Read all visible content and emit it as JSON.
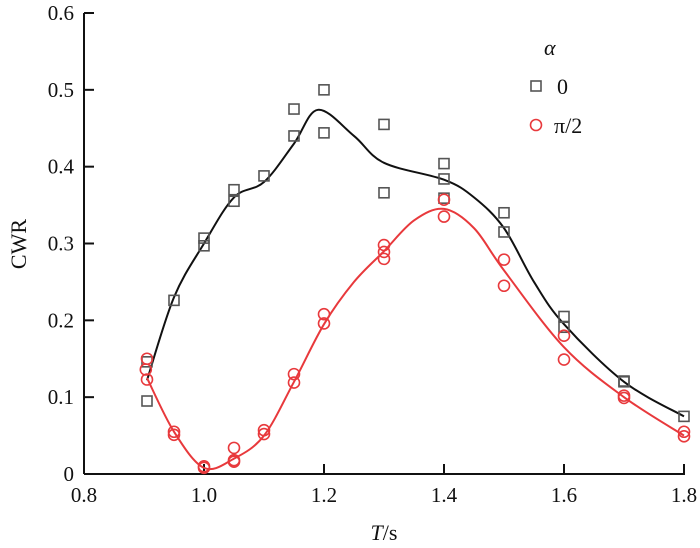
{
  "chart_data": {
    "type": "scatter",
    "xlabel_italic": "T",
    "xlabel_unit": "/s",
    "ylabel": "CWR",
    "xlim": [
      0.8,
      1.8
    ],
    "ylim": [
      0,
      0.6
    ],
    "xticks": [
      "0.8",
      "1.0",
      "1.2",
      "1.4",
      "1.6",
      "1.8"
    ],
    "yticks": [
      "0",
      "0.1",
      "0.2",
      "0.3",
      "0.4",
      "0.5",
      "0.6"
    ],
    "grid": false,
    "legend": {
      "title": "α",
      "position": "top-right"
    },
    "series": [
      {
        "name": "0",
        "color": "#111111",
        "marker": "square",
        "points": [
          [
            0.905,
            0.095
          ],
          [
            0.905,
            0.146
          ],
          [
            0.95,
            0.226
          ],
          [
            1.0,
            0.307
          ],
          [
            1.0,
            0.297
          ],
          [
            1.05,
            0.37
          ],
          [
            1.05,
            0.355
          ],
          [
            1.1,
            0.388
          ],
          [
            1.15,
            0.475
          ],
          [
            1.15,
            0.44
          ],
          [
            1.2,
            0.5
          ],
          [
            1.2,
            0.444
          ],
          [
            1.3,
            0.455
          ],
          [
            1.3,
            0.366
          ],
          [
            1.4,
            0.404
          ],
          [
            1.4,
            0.384
          ],
          [
            1.4,
            0.359
          ],
          [
            1.5,
            0.34
          ],
          [
            1.5,
            0.315
          ],
          [
            1.6,
            0.205
          ],
          [
            1.6,
            0.191
          ],
          [
            1.7,
            0.121
          ],
          [
            1.7,
            0.12
          ],
          [
            1.8,
            0.075
          ]
        ],
        "curve": [
          [
            0.905,
            0.122
          ],
          [
            0.95,
            0.23
          ],
          [
            1.0,
            0.3
          ],
          [
            1.05,
            0.36
          ],
          [
            1.1,
            0.38
          ],
          [
            1.15,
            0.43
          ],
          [
            1.19,
            0.474
          ],
          [
            1.25,
            0.44
          ],
          [
            1.3,
            0.405
          ],
          [
            1.4,
            0.383
          ],
          [
            1.45,
            0.36
          ],
          [
            1.5,
            0.32
          ],
          [
            1.55,
            0.25
          ],
          [
            1.6,
            0.195
          ],
          [
            1.7,
            0.12
          ],
          [
            1.8,
            0.075
          ]
        ]
      },
      {
        "name": "π/2",
        "color": "#e8393c",
        "marker": "circle",
        "points": [
          [
            0.905,
            0.15
          ],
          [
            0.903,
            0.136
          ],
          [
            0.905,
            0.123
          ],
          [
            0.95,
            0.055
          ],
          [
            0.95,
            0.051
          ],
          [
            1.0,
            0.01
          ],
          [
            1.0,
            0.008
          ],
          [
            1.05,
            0.034
          ],
          [
            1.05,
            0.018
          ],
          [
            1.05,
            0.016
          ],
          [
            1.1,
            0.057
          ],
          [
            1.1,
            0.052
          ],
          [
            1.15,
            0.13
          ],
          [
            1.15,
            0.119
          ],
          [
            1.2,
            0.208
          ],
          [
            1.2,
            0.196
          ],
          [
            1.3,
            0.298
          ],
          [
            1.3,
            0.289
          ],
          [
            1.3,
            0.28
          ],
          [
            1.4,
            0.357
          ],
          [
            1.4,
            0.335
          ],
          [
            1.5,
            0.279
          ],
          [
            1.5,
            0.245
          ],
          [
            1.6,
            0.18
          ],
          [
            1.6,
            0.149
          ],
          [
            1.7,
            0.102
          ],
          [
            1.7,
            0.099
          ],
          [
            1.8,
            0.055
          ],
          [
            1.8,
            0.049
          ]
        ],
        "curve": [
          [
            0.905,
            0.125
          ],
          [
            0.95,
            0.055
          ],
          [
            1.0,
            0.008
          ],
          [
            1.05,
            0.02
          ],
          [
            1.1,
            0.05
          ],
          [
            1.15,
            0.12
          ],
          [
            1.2,
            0.195
          ],
          [
            1.25,
            0.25
          ],
          [
            1.3,
            0.29
          ],
          [
            1.35,
            0.33
          ],
          [
            1.4,
            0.345
          ],
          [
            1.45,
            0.32
          ],
          [
            1.5,
            0.265
          ],
          [
            1.6,
            0.165
          ],
          [
            1.7,
            0.1
          ],
          [
            1.8,
            0.05
          ]
        ]
      }
    ]
  }
}
